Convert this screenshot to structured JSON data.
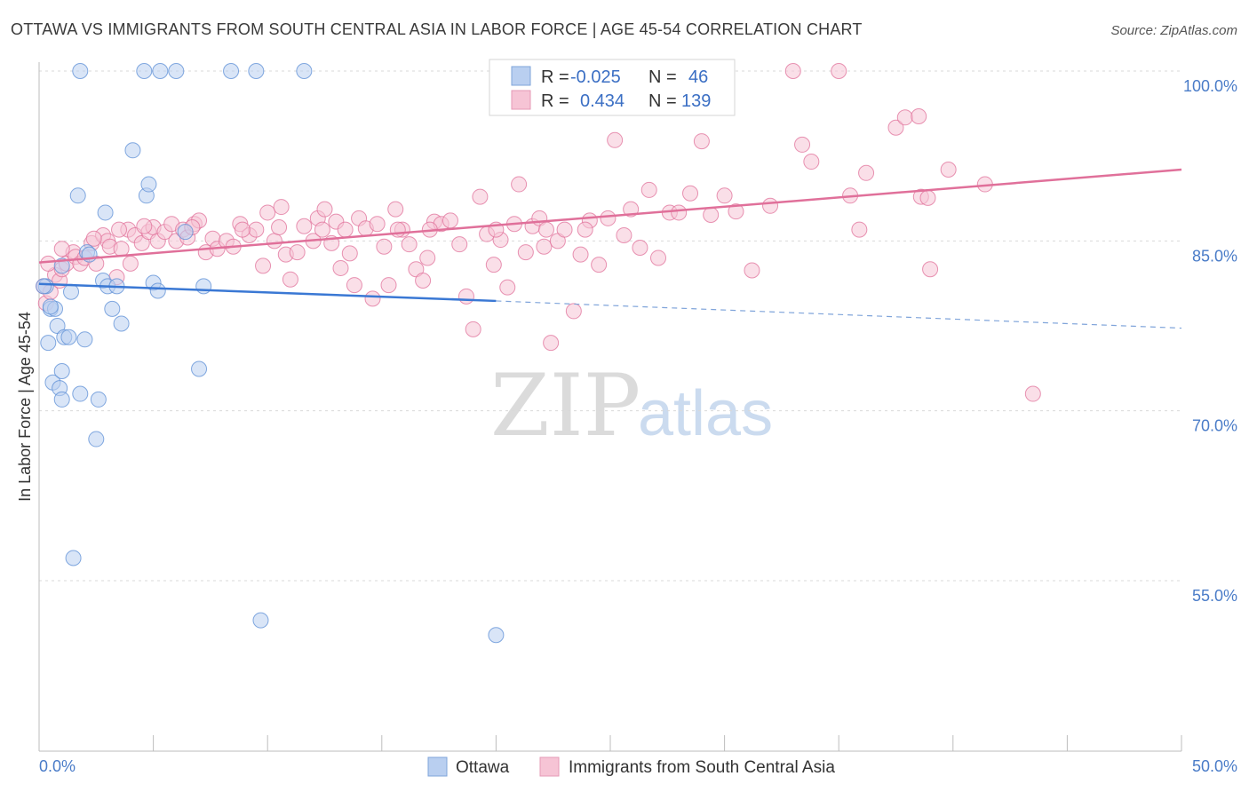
{
  "chart_data": {
    "type": "scatter",
    "title": "OTTAWA VS IMMIGRANTS FROM SOUTH CENTRAL ASIA IN LABOR FORCE | AGE 45-54 CORRELATION CHART",
    "source": "Source: ZipAtlas.com",
    "xlabel": "",
    "ylabel": "In Labor Force | Age 45-54",
    "xlim": [
      0,
      50
    ],
    "ylim": [
      40,
      102
    ],
    "x_tick_labels": [
      "0.0%",
      "50.0%"
    ],
    "y_ticks": [
      100,
      85,
      70,
      55
    ],
    "y_tick_labels": [
      "100.0%",
      "85.0%",
      "70.0%",
      "55.0%"
    ],
    "grid": true,
    "legend_position": "top-center",
    "watermark": {
      "zip": "ZIP",
      "atlas": "atlas"
    },
    "stats": [
      {
        "r_label": "R =",
        "r_value": "-0.025",
        "n_label": "N =",
        "n_value": "46"
      },
      {
        "r_label": "R =",
        "r_value": "0.434",
        "n_label": "N =",
        "n_value": "139"
      }
    ],
    "series": [
      {
        "name": "Ottawa",
        "color": "#5b8ed6",
        "fill": "#b9cff0",
        "trend": {
          "x0": 0,
          "y0": 81.2,
          "x1": 20,
          "y1": 79.7,
          "dash_to_x": 50,
          "dash_to_y": 77.3
        },
        "points": [
          [
            0.3,
            81
          ],
          [
            0.5,
            79
          ],
          [
            0.4,
            76
          ],
          [
            0.6,
            72.5
          ],
          [
            0.7,
            79
          ],
          [
            0.8,
            77.5
          ],
          [
            0.9,
            72
          ],
          [
            1.0,
            71
          ],
          [
            1.0,
            73.5
          ],
          [
            1.1,
            76.5
          ],
          [
            1.3,
            76.5
          ],
          [
            1.4,
            80.5
          ],
          [
            1.5,
            57
          ],
          [
            1.7,
            89
          ],
          [
            1.8,
            71.5
          ],
          [
            2.0,
            76.3
          ],
          [
            2.1,
            84
          ],
          [
            2.6,
            71
          ],
          [
            2.5,
            67.5
          ],
          [
            2.8,
            81.5
          ],
          [
            2.9,
            87.5
          ],
          [
            3.0,
            81
          ],
          [
            3.2,
            79
          ],
          [
            3.4,
            81
          ],
          [
            3.6,
            77.7
          ],
          [
            4.1,
            93
          ],
          [
            4.7,
            89
          ],
          [
            4.8,
            90
          ],
          [
            5.0,
            81.3
          ],
          [
            5.2,
            80.6
          ],
          [
            6.4,
            85.8
          ],
          [
            7.0,
            73.7
          ],
          [
            7.2,
            81
          ],
          [
            9.7,
            51.5
          ],
          [
            20.0,
            50.2
          ],
          [
            1.8,
            100
          ],
          [
            4.6,
            100
          ],
          [
            5.3,
            100
          ],
          [
            6.0,
            100
          ],
          [
            8.4,
            100
          ],
          [
            9.5,
            100
          ],
          [
            11.6,
            100
          ],
          [
            0.2,
            81
          ],
          [
            0.5,
            79.2
          ],
          [
            1.0,
            82.8
          ],
          [
            2.2,
            83.8
          ]
        ]
      },
      {
        "name": "Immigrants from South Central Asia",
        "color": "#e0709a",
        "fill": "#f6c4d5",
        "trend": {
          "x0": 0,
          "y0": 83.1,
          "x1": 50,
          "y1": 91.3
        },
        "points": [
          [
            0.2,
            81
          ],
          [
            0.3,
            79.5
          ],
          [
            0.5,
            80.5
          ],
          [
            0.7,
            82
          ],
          [
            0.9,
            81.5
          ],
          [
            1.0,
            82.5
          ],
          [
            1.2,
            83
          ],
          [
            1.5,
            84
          ],
          [
            1.6,
            83.6
          ],
          [
            1.8,
            83
          ],
          [
            2.0,
            83.5
          ],
          [
            2.3,
            84.8
          ],
          [
            2.5,
            83
          ],
          [
            2.8,
            85.5
          ],
          [
            3.0,
            85
          ],
          [
            3.1,
            84.5
          ],
          [
            3.4,
            81.8
          ],
          [
            3.6,
            84.3
          ],
          [
            3.9,
            86
          ],
          [
            4.2,
            85.5
          ],
          [
            4.5,
            84.8
          ],
          [
            4.8,
            85.8
          ],
          [
            5.0,
            86.2
          ],
          [
            5.2,
            85
          ],
          [
            5.5,
            85.8
          ],
          [
            5.8,
            86.5
          ],
          [
            6.0,
            85
          ],
          [
            6.3,
            86
          ],
          [
            6.5,
            85.3
          ],
          [
            6.8,
            86.5
          ],
          [
            7.0,
            86.8
          ],
          [
            7.3,
            84
          ],
          [
            7.6,
            85.2
          ],
          [
            7.8,
            84.3
          ],
          [
            8.2,
            85
          ],
          [
            8.5,
            84.5
          ],
          [
            8.8,
            86.5
          ],
          [
            9.2,
            85.5
          ],
          [
            9.5,
            86
          ],
          [
            9.8,
            82.8
          ],
          [
            10.0,
            87.5
          ],
          [
            10.3,
            85
          ],
          [
            10.6,
            88
          ],
          [
            10.8,
            83.8
          ],
          [
            11.0,
            81.6
          ],
          [
            11.3,
            84
          ],
          [
            11.6,
            86.3
          ],
          [
            12.0,
            85
          ],
          [
            12.2,
            87
          ],
          [
            12.5,
            87.8
          ],
          [
            12.8,
            84.8
          ],
          [
            13.0,
            86.7
          ],
          [
            13.2,
            82.6
          ],
          [
            13.6,
            83.9
          ],
          [
            13.8,
            81.1
          ],
          [
            14.0,
            87
          ],
          [
            14.3,
            86.1
          ],
          [
            14.6,
            79.9
          ],
          [
            14.8,
            86.5
          ],
          [
            15.1,
            84.5
          ],
          [
            15.3,
            81.1
          ],
          [
            15.6,
            87.8
          ],
          [
            15.9,
            86
          ],
          [
            16.2,
            84.7
          ],
          [
            16.5,
            82.5
          ],
          [
            16.8,
            81.5
          ],
          [
            17.0,
            83.5
          ],
          [
            17.3,
            86.7
          ],
          [
            17.6,
            86.5
          ],
          [
            18.0,
            86.8
          ],
          [
            18.4,
            84.7
          ],
          [
            18.7,
            80.1
          ],
          [
            19.0,
            77.2
          ],
          [
            19.3,
            88.9
          ],
          [
            19.6,
            85.6
          ],
          [
            19.9,
            82.9
          ],
          [
            20.2,
            85.1
          ],
          [
            20.5,
            80.9
          ],
          [
            20.8,
            86.5
          ],
          [
            21.0,
            90
          ],
          [
            21.3,
            84
          ],
          [
            21.6,
            86.3
          ],
          [
            21.9,
            87
          ],
          [
            22.1,
            84.5
          ],
          [
            22.4,
            76
          ],
          [
            22.7,
            85
          ],
          [
            23.0,
            86
          ],
          [
            23.4,
            78.8
          ],
          [
            23.7,
            83.8
          ],
          [
            24.1,
            86.8
          ],
          [
            24.5,
            82.9
          ],
          [
            24.9,
            87
          ],
          [
            25.2,
            93.9
          ],
          [
            25.6,
            85.5
          ],
          [
            25.9,
            87.8
          ],
          [
            26.3,
            84.4
          ],
          [
            26.7,
            89.5
          ],
          [
            27.1,
            83.5
          ],
          [
            27.6,
            87.5
          ],
          [
            28.0,
            87.5
          ],
          [
            28.5,
            89.2
          ],
          [
            29.0,
            93.8
          ],
          [
            29.4,
            87.3
          ],
          [
            30.0,
            89
          ],
          [
            30.5,
            87.6
          ],
          [
            31.2,
            82.4
          ],
          [
            32.0,
            88.1
          ],
          [
            33.0,
            100
          ],
          [
            33.4,
            93.5
          ],
          [
            33.8,
            92
          ],
          [
            35.0,
            100
          ],
          [
            35.5,
            89
          ],
          [
            35.9,
            86
          ],
          [
            36.2,
            91
          ],
          [
            37.5,
            95
          ],
          [
            37.9,
            95.9
          ],
          [
            38.5,
            96
          ],
          [
            38.6,
            88.9
          ],
          [
            38.9,
            88.8
          ],
          [
            39.0,
            82.5
          ],
          [
            39.8,
            91.3
          ],
          [
            41.4,
            90
          ],
          [
            43.5,
            71.5
          ],
          [
            0.4,
            83
          ],
          [
            1.0,
            84.3
          ],
          [
            2.4,
            85.2
          ],
          [
            3.5,
            86
          ],
          [
            4.0,
            83
          ],
          [
            4.6,
            86.3
          ],
          [
            6.7,
            86.2
          ],
          [
            8.9,
            86
          ],
          [
            10.5,
            86.2
          ],
          [
            12.4,
            86
          ],
          [
            13.4,
            86
          ],
          [
            15.7,
            86
          ],
          [
            17.1,
            86
          ],
          [
            20.0,
            86
          ],
          [
            22.2,
            86
          ],
          [
            23.9,
            86
          ]
        ]
      }
    ]
  }
}
